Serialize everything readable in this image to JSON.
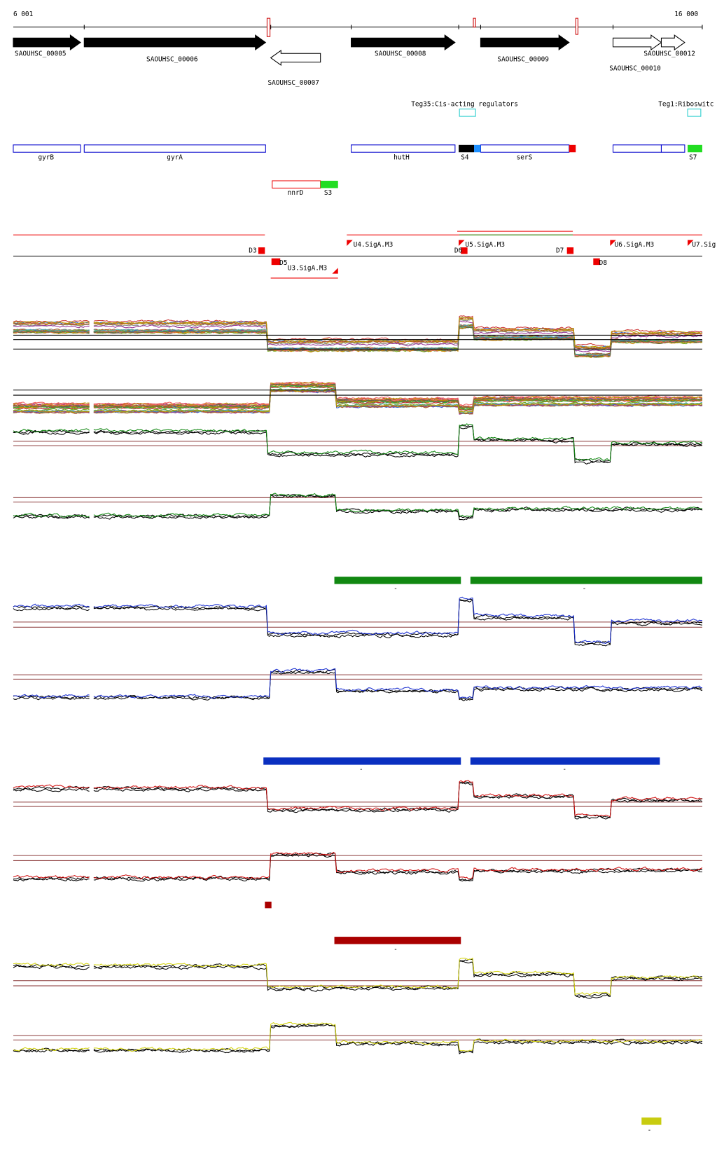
{
  "axis": {
    "start": "6 001",
    "end": "16 000"
  },
  "genes": [
    "SAOUHSC_00005",
    "SAOUHSC_00006",
    "SAOUHSC_00007",
    "SAOUHSC_00008",
    "SAOUHSC_00009",
    "SAOUHSC_00010",
    "SAOUHSC_00012"
  ],
  "regulators": [
    "Teg35:Cis-acting regulators",
    "Teg1:Riboswitc"
  ],
  "features": [
    "gyrB",
    "gyrA",
    "hutH",
    "S4",
    "serS",
    "S7",
    "nnrD",
    "S3"
  ],
  "operons": [
    "D3",
    "D5",
    "U3.SigA.M3",
    "U4.SigA.M3",
    "D6",
    "U5.SigA.M3",
    "D7",
    "D8",
    "U6.SigA.M3",
    "U7.Sig"
  ],
  "bars": [
    "-",
    "-",
    "-",
    "-",
    "-",
    "-"
  ]
}
